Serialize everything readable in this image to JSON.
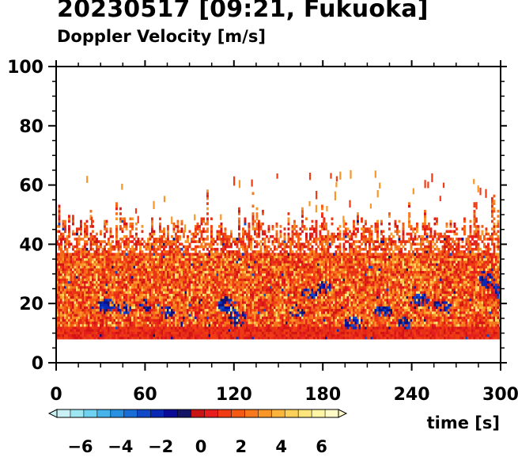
{
  "chart_data": {
    "type": "heatmap",
    "title": "20230517 [09:21, Fukuoka]",
    "subtitle": "Doppler Velocity [m/s]",
    "xlabel": "time [s]",
    "xlim": [
      0,
      300
    ],
    "ylim": [
      0,
      100
    ],
    "xticks": [
      0,
      60,
      120,
      180,
      240,
      300
    ],
    "yticks": [
      0,
      20,
      40,
      60,
      80,
      100
    ],
    "colorbar": {
      "range": [
        -7,
        7
      ],
      "ticks": [
        -6,
        -4,
        -2,
        0,
        2,
        4,
        6
      ],
      "tick_labels": [
        "−6",
        "−4",
        "−2",
        "0",
        "2",
        "4",
        "6"
      ],
      "colors": [
        "#c8f0f5",
        "#9ee6f0",
        "#6ed2f0",
        "#46b4ea",
        "#2890e0",
        "#1a6cd6",
        "#1048c8",
        "#0a28b4",
        "#0a0a96",
        "#141464",
        "#c81414",
        "#e61e1e",
        "#f03c14",
        "#f55a14",
        "#f8781e",
        "#fa9628",
        "#fcb43c",
        "#fdd05a",
        "#fee67d",
        "#fff5a5",
        "#fffac8"
      ]
    },
    "data_region": {
      "y_bottom": 8,
      "y_top_typical": 45,
      "y_top_max": 68,
      "dominant": "positive (red/orange/yellow)",
      "negative_patches": "scattered blue patches mainly between 10 and 35"
    }
  }
}
